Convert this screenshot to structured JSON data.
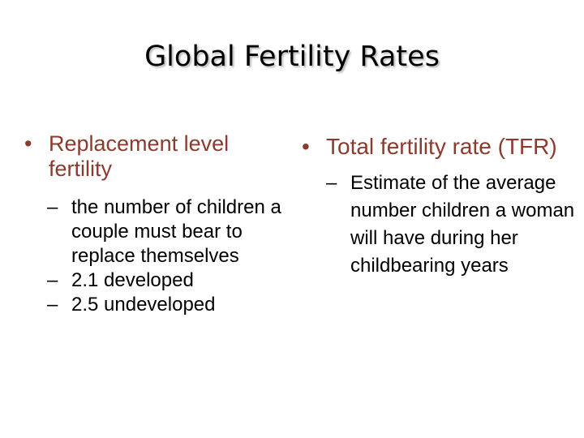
{
  "slide": {
    "title": "Global Fertility Rates",
    "accent_color": "#8b3a2e",
    "left": {
      "heading": "Replacement level fertility",
      "items": [
        "the number of children a couple must bear to replace themselves",
        "2.1 developed",
        "2.5 undeveloped"
      ]
    },
    "right": {
      "heading": "Total fertility rate (TFR)",
      "items": [
        "Estimate of the average number children a woman will have during her childbearing years"
      ]
    }
  }
}
